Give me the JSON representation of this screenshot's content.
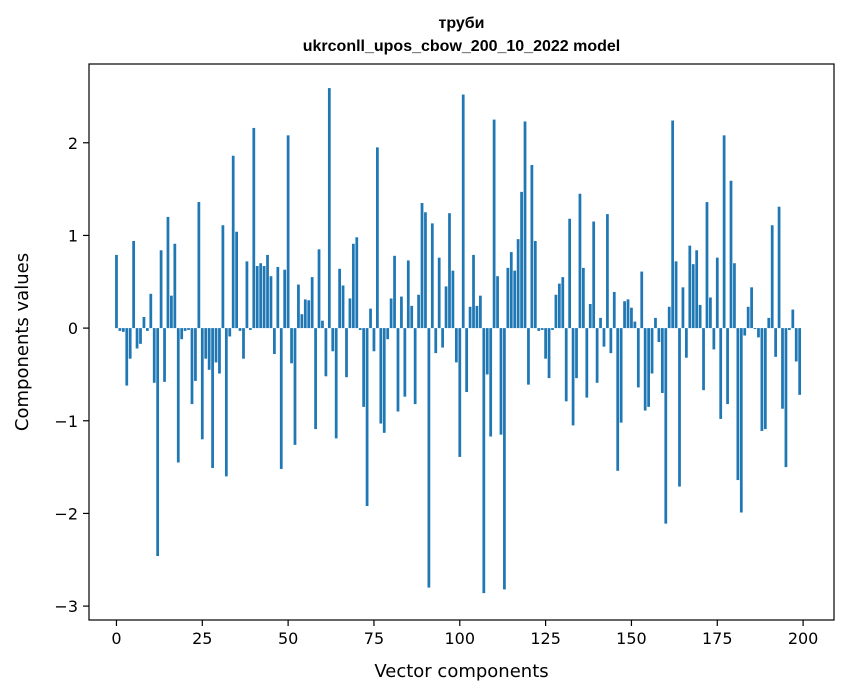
{
  "chart_data": {
    "type": "bar",
    "title": "труби",
    "subtitle": "ukrconll_upos_cbow_200_10_2022 model",
    "xlabel": "Vector components",
    "ylabel": "Components values",
    "xlim": [
      -8,
      209
    ],
    "ylim": [
      -3.15,
      2.85
    ],
    "xticks": [
      0,
      25,
      50,
      75,
      100,
      125,
      150,
      175,
      200
    ],
    "yticks": [
      -3,
      -2,
      -1,
      0,
      1,
      2
    ],
    "ytick_labels": [
      "−3",
      "−2",
      "−1",
      "0",
      "1",
      "2"
    ],
    "bar_color": "#1f77b4",
    "grid": false,
    "legend": "none",
    "values": [
      0.79,
      -0.03,
      -0.04,
      -0.62,
      -0.33,
      0.94,
      -0.22,
      -0.17,
      0.12,
      -0.03,
      0.37,
      -0.59,
      -2.46,
      0.84,
      -0.58,
      1.2,
      0.35,
      0.91,
      -1.45,
      -0.12,
      -0.03,
      -0.02,
      -0.82,
      -0.57,
      1.36,
      -1.2,
      -0.33,
      -0.45,
      -1.51,
      -0.37,
      -0.49,
      1.11,
      -1.6,
      -0.09,
      1.86,
      1.04,
      -0.03,
      -0.33,
      0.72,
      -0.02,
      2.16,
      0.67,
      0.7,
      0.67,
      0.79,
      0.56,
      -0.28,
      0.66,
      -1.52,
      0.63,
      2.08,
      -0.38,
      -1.26,
      0.47,
      0.15,
      0.31,
      0.3,
      0.55,
      -1.09,
      0.85,
      0.08,
      -0.52,
      2.59,
      -0.25,
      -1.19,
      0.64,
      0.46,
      -0.53,
      0.32,
      0.91,
      0.98,
      -0.02,
      -0.85,
      -1.92,
      0.21,
      -0.25,
      1.95,
      -1.03,
      -1.13,
      -0.12,
      0.32,
      0.78,
      -0.9,
      0.34,
      -0.74,
      0.73,
      0.24,
      -0.82,
      0.36,
      1.35,
      1.25,
      -2.8,
      1.13,
      -0.27,
      0.76,
      -0.21,
      0.45,
      1.24,
      0.62,
      -0.37,
      -1.39,
      2.52,
      -0.69,
      0.23,
      0.79,
      0.24,
      0.35,
      -2.86,
      -0.5,
      -1.17,
      2.25,
      0.56,
      -1.15,
      -2.82,
      0.65,
      0.82,
      0.62,
      0.96,
      1.47,
      2.23,
      -0.61,
      1.76,
      0.94,
      -0.03,
      -0.02,
      -0.33,
      -0.54,
      -0.02,
      0.36,
      0.48,
      0.55,
      -0.79,
      1.18,
      -1.05,
      -0.54,
      1.45,
      0.65,
      -0.75,
      0.26,
      1.15,
      -0.59,
      0.11,
      -0.2,
      1.23,
      -0.27,
      0.39,
      -1.54,
      -1.02,
      0.29,
      0.31,
      0.22,
      0.07,
      -0.64,
      0.61,
      -0.89,
      -0.85,
      -0.49,
      0.11,
      -0.15,
      -0.7,
      -2.11,
      0.23,
      2.24,
      0.72,
      -1.71,
      0.44,
      -0.32,
      0.89,
      0.69,
      0.84,
      0.25,
      -0.67,
      1.36,
      0.33,
      -0.23,
      0.76,
      -0.98,
      2.08,
      -0.82,
      1.59,
      0.7,
      -1.64,
      -1.99,
      -0.08,
      0.23,
      0.44,
      -0.01,
      -0.1,
      -1.11,
      -1.09,
      0.11,
      1.11,
      -0.31,
      1.31,
      -0.87,
      -1.5,
      -0.02,
      0.2,
      -0.36,
      -0.72
    ]
  }
}
